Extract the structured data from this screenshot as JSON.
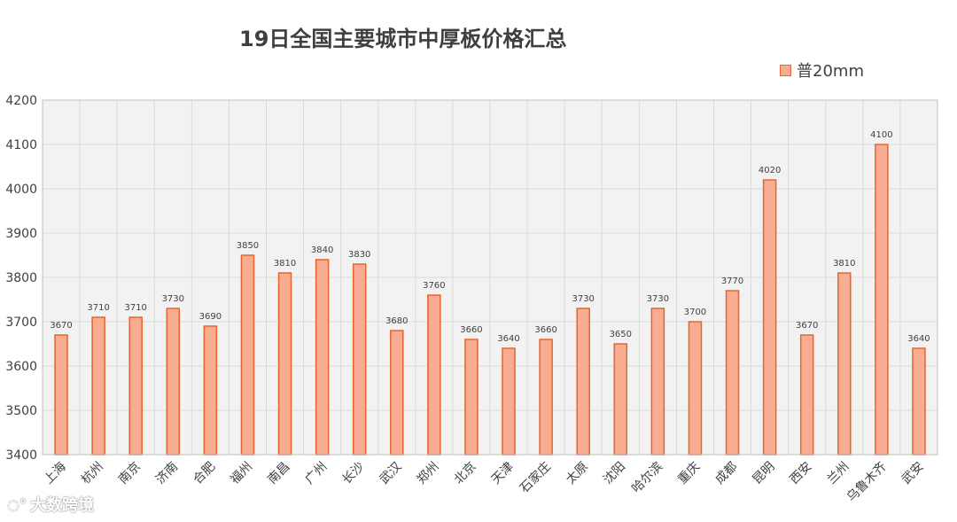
{
  "chart_data": {
    "type": "bar",
    "title": "19日全国主要城市中厚板价格汇总",
    "categories": [
      "上海",
      "杭州",
      "南京",
      "济南",
      "合肥",
      "福州",
      "南昌",
      "广州",
      "长沙",
      "武汉",
      "郑州",
      "北京",
      "天津",
      "石家庄",
      "太原",
      "沈阳",
      "哈尔滨",
      "重庆",
      "成都",
      "昆明",
      "西安",
      "兰州",
      "乌鲁木齐",
      "武安"
    ],
    "series": [
      {
        "name": "普20mm",
        "values": [
          3670,
          3710,
          3710,
          3730,
          3690,
          3850,
          3810,
          3840,
          3830,
          3680,
          3760,
          3660,
          3640,
          3660,
          3730,
          3650,
          3730,
          3700,
          3770,
          4020,
          3670,
          3810,
          4100,
          3640
        ]
      }
    ],
    "ylim": [
      3400,
      4200
    ],
    "yticks": [
      3400,
      3500,
      3600,
      3700,
      3800,
      3900,
      4000,
      4100,
      4200
    ],
    "grid": true,
    "legend_position": "top-right",
    "colors": {
      "bar_fill": "#f8ad92",
      "bar_stroke": "#e8642d",
      "grid": "#d9d9d9",
      "plot_bg": "#f2f2f2"
    }
  },
  "watermark": {
    "text": "大数跨境"
  }
}
